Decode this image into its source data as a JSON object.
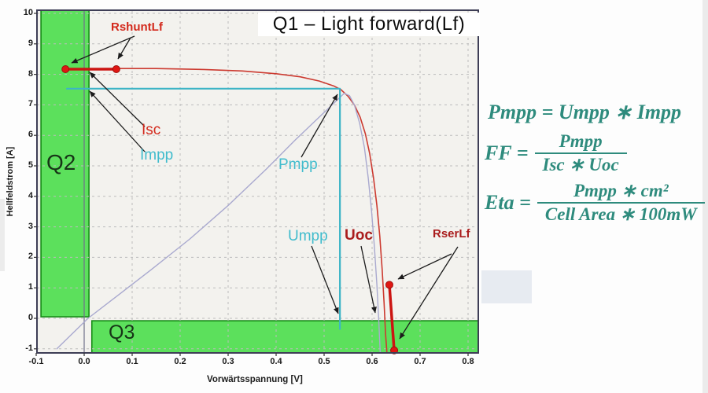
{
  "title": "Q1 – Light forward(Lf)",
  "axes": {
    "xlabel": "Vorwärtsspannung [V]",
    "ylabel": "Hellfeldstrom [A]",
    "x_ticks": [
      "-0.1",
      "0.0",
      "0.1",
      "0.2",
      "0.3",
      "0.4",
      "0.5",
      "0.6",
      "0.7",
      "0.8"
    ],
    "y_ticks": [
      "10",
      "9",
      "8",
      "7",
      "6",
      "5",
      "4",
      "3",
      "2",
      "1",
      "0",
      "-1"
    ]
  },
  "quadrant_labels": {
    "q2": "Q2",
    "q3": "Q3"
  },
  "curve_labels": {
    "rshunt": "RshuntLf",
    "isc": "Isc",
    "impp": "Impp",
    "pmpp": "Pmpp",
    "umpp": "Umpp",
    "uoc": "Uoc",
    "rser": "RserLf"
  },
  "equations": {
    "pmpp": "Pmpp = Umpp ∗ Impp",
    "ff_lhs": "FF =",
    "ff_num": "Pmpp",
    "ff_den": "Isc ∗ Uoc",
    "eta_lhs": "Eta =",
    "eta_num": "Pmpp ∗ cm²",
    "eta_den": "Cell Area ∗ 100mW"
  },
  "colors": {
    "iv_curve": "#cc3a30",
    "fit_segments": "#cc1512",
    "marker_dot": "#e01713",
    "power_curve": "#a9a9cf",
    "mpp_guide": "#3db4c6",
    "quadrant_fill": "#5ce05c",
    "quadrant_border": "#168a16",
    "equation_text": "#2e8b7d",
    "red_label": "#d3291c",
    "dark_red_label": "#aa1d1d",
    "cyan_label": "#41bccd",
    "grid": "#bcbcbc",
    "frame": "#3e3e56"
  },
  "chart_data": {
    "type": "line",
    "title": "Q1 – Light forward(Lf)",
    "xlabel": "Vorwärtsspannung [V]",
    "ylabel": "Hellfeldstrom [A]",
    "xlim": [
      -0.11,
      0.82
    ],
    "ylim": [
      -1.15,
      10.1
    ],
    "grid": true,
    "x_tick_values": [
      -0.1,
      0.0,
      0.1,
      0.2,
      0.3,
      0.4,
      0.5,
      0.6,
      0.7,
      0.8
    ],
    "y_tick_values": [
      10,
      9,
      8,
      7,
      6,
      5,
      4,
      3,
      2,
      1,
      0,
      -1
    ],
    "key_values": {
      "Isc_A": 8.2,
      "Impp_A": 7.5,
      "Umpp_V": 0.53,
      "Uoc_V": 0.63,
      "mpp_point": [
        0.53,
        7.5
      ]
    },
    "series": [
      {
        "name": "light-iv-curve",
        "color": "#cc3a30",
        "width": 1.6,
        "points": [
          [
            -0.039,
            8.18
          ],
          [
            0.05,
            8.19
          ],
          [
            0.15,
            8.19
          ],
          [
            0.25,
            8.16
          ],
          [
            0.33,
            8.11
          ],
          [
            0.4,
            8.02
          ],
          [
            0.45,
            7.92
          ],
          [
            0.49,
            7.78
          ],
          [
            0.52,
            7.62
          ],
          [
            0.535,
            7.5
          ],
          [
            0.55,
            7.28
          ],
          [
            0.563,
            7.0
          ],
          [
            0.575,
            6.6
          ],
          [
            0.586,
            6.05
          ],
          [
            0.595,
            5.4
          ],
          [
            0.603,
            4.6
          ],
          [
            0.61,
            3.7
          ],
          [
            0.616,
            2.7
          ],
          [
            0.621,
            1.6
          ],
          [
            0.625,
            0.5
          ],
          [
            0.628,
            -0.5
          ],
          [
            0.631,
            -1.15
          ]
        ]
      },
      {
        "name": "power-curve",
        "color": "#a9a9cf",
        "width": 1.4,
        "points": [
          [
            -0.057,
            -1.0
          ],
          [
            0.008,
            0.0
          ],
          [
            0.07,
            0.75
          ],
          [
            0.14,
            1.6
          ],
          [
            0.22,
            2.6
          ],
          [
            0.3,
            3.7
          ],
          [
            0.38,
            4.9
          ],
          [
            0.44,
            5.85
          ],
          [
            0.49,
            6.6
          ],
          [
            0.52,
            7.05
          ],
          [
            0.542,
            7.38
          ],
          [
            0.553,
            7.3
          ],
          [
            0.563,
            7.0
          ],
          [
            0.574,
            6.4
          ],
          [
            0.584,
            5.6
          ],
          [
            0.592,
            4.6
          ],
          [
            0.599,
            3.5
          ],
          [
            0.605,
            2.3
          ],
          [
            0.61,
            1.1
          ],
          [
            0.614,
            -0.1
          ],
          [
            0.617,
            -1.15
          ]
        ]
      },
      {
        "name": "mpp-guide",
        "color": "#3db4c6",
        "width": 2.2,
        "points": [
          [
            -0.036,
            7.53
          ],
          [
            0.533,
            7.53
          ],
          [
            0.533,
            -0.35
          ]
        ]
      },
      {
        "name": "rshunt-fit-segment",
        "color": "#cc1512",
        "width": 3.5,
        "points": [
          [
            -0.039,
            8.17
          ],
          [
            0.067,
            8.17
          ]
        ]
      },
      {
        "name": "rser-fit-segment",
        "color": "#cc1512",
        "width": 3.5,
        "points": [
          [
            0.636,
            1.1
          ],
          [
            0.646,
            -1.05
          ]
        ]
      }
    ],
    "markers": [
      [
        -0.039,
        8.17
      ],
      [
        0.067,
        8.17
      ],
      [
        0.636,
        1.1
      ],
      [
        0.646,
        -1.05
      ]
    ],
    "regions": [
      {
        "name": "Q2",
        "x": [
          -0.09,
          0.01
        ],
        "y": [
          0.05,
          10.1
        ],
        "fill": "#5ce05c",
        "stroke": "#168a16"
      },
      {
        "name": "Q3",
        "x": [
          0.016,
          0.822
        ],
        "y": [
          -1.13,
          -0.08
        ],
        "fill": "#5ce05c",
        "stroke": "#168a16"
      }
    ],
    "arrows": [
      {
        "from": [
          171,
          46
        ],
        "to": [
          91,
          80
        ]
      },
      {
        "from": [
          166,
          48
        ],
        "to": [
          150,
          75
        ]
      },
      {
        "from": [
          184,
          161
        ],
        "to": [
          114,
          92
        ]
      },
      {
        "from": [
          184,
          193
        ],
        "to": [
          114,
          116
        ]
      },
      {
        "from": [
          383,
          200
        ],
        "to": [
          429,
          120
        ]
      },
      {
        "from": [
          396,
          313
        ],
        "to": [
          430,
          399
        ]
      },
      {
        "from": [
          459,
          313
        ],
        "to": [
          477,
          398
        ]
      },
      {
        "from": [
          574,
          323
        ],
        "to": [
          506,
          355
        ]
      },
      {
        "from": [
          582,
          314
        ],
        "to": [
          508,
          431
        ]
      }
    ]
  }
}
